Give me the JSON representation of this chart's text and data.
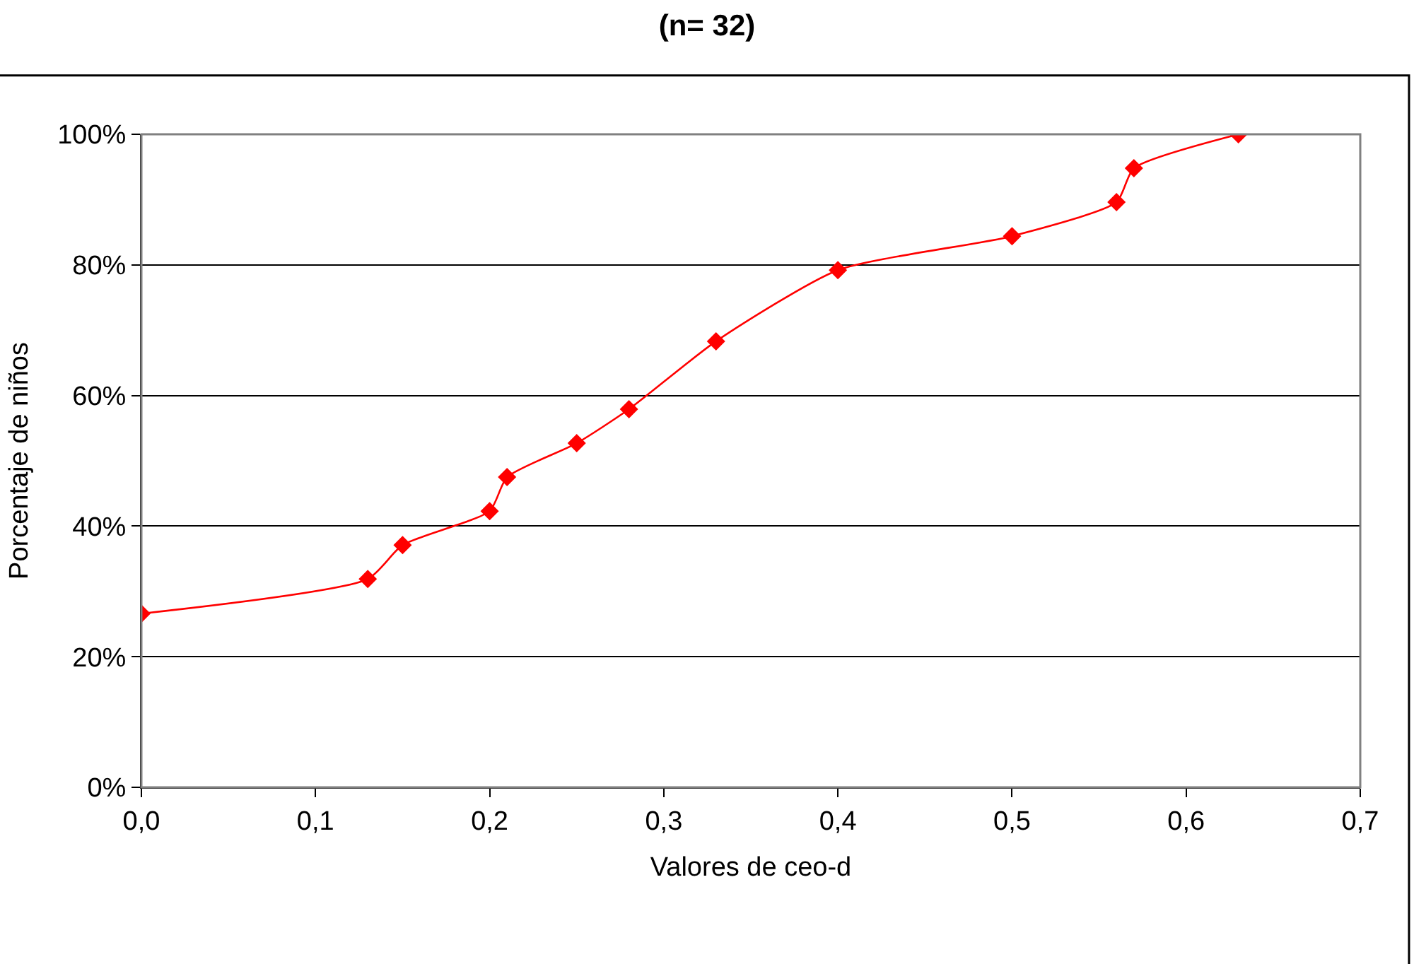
{
  "chart_data": {
    "type": "line",
    "title": "(n= 32)",
    "xlabel": "Valores de ceo-d",
    "ylabel": "Porcentaje de niños",
    "x": [
      0,
      0.13,
      0.15,
      0.2,
      0.21,
      0.25,
      0.28,
      0.33,
      0.4,
      0.5,
      0.56,
      0.57,
      0.63
    ],
    "series": [
      {
        "color": "#ff0000",
        "values": [
          26.6,
          31.9,
          37.1,
          42.3,
          47.5,
          52.7,
          57.9,
          68.3,
          79.2,
          84.4,
          89.6,
          94.8,
          100
        ]
      }
    ],
    "xlim": [
      0,
      0.7
    ],
    "xticks": [
      {
        "value": 0,
        "label": "0,0"
      },
      {
        "value": 0.1,
        "label": "0,1"
      },
      {
        "value": 0.2,
        "label": "0,2"
      },
      {
        "value": 0.3,
        "label": "0,3"
      },
      {
        "value": 0.4,
        "label": "0,4"
      },
      {
        "value": 0.5,
        "label": "0,5"
      },
      {
        "value": 0.6,
        "label": "0,6"
      },
      {
        "value": 0.7,
        "label": "0,7"
      }
    ],
    "ylim": [
      0,
      100
    ],
    "yticks": [
      {
        "value": 0,
        "label": "0%"
      },
      {
        "value": 20,
        "label": "20%"
      },
      {
        "value": 40,
        "label": "40%"
      },
      {
        "value": 60,
        "label": "60%"
      },
      {
        "value": 80,
        "label": "80%"
      },
      {
        "value": 100,
        "label": "100%"
      }
    ],
    "grid": "y",
    "marker": "diamond",
    "line_style": "solid",
    "legend": false
  }
}
